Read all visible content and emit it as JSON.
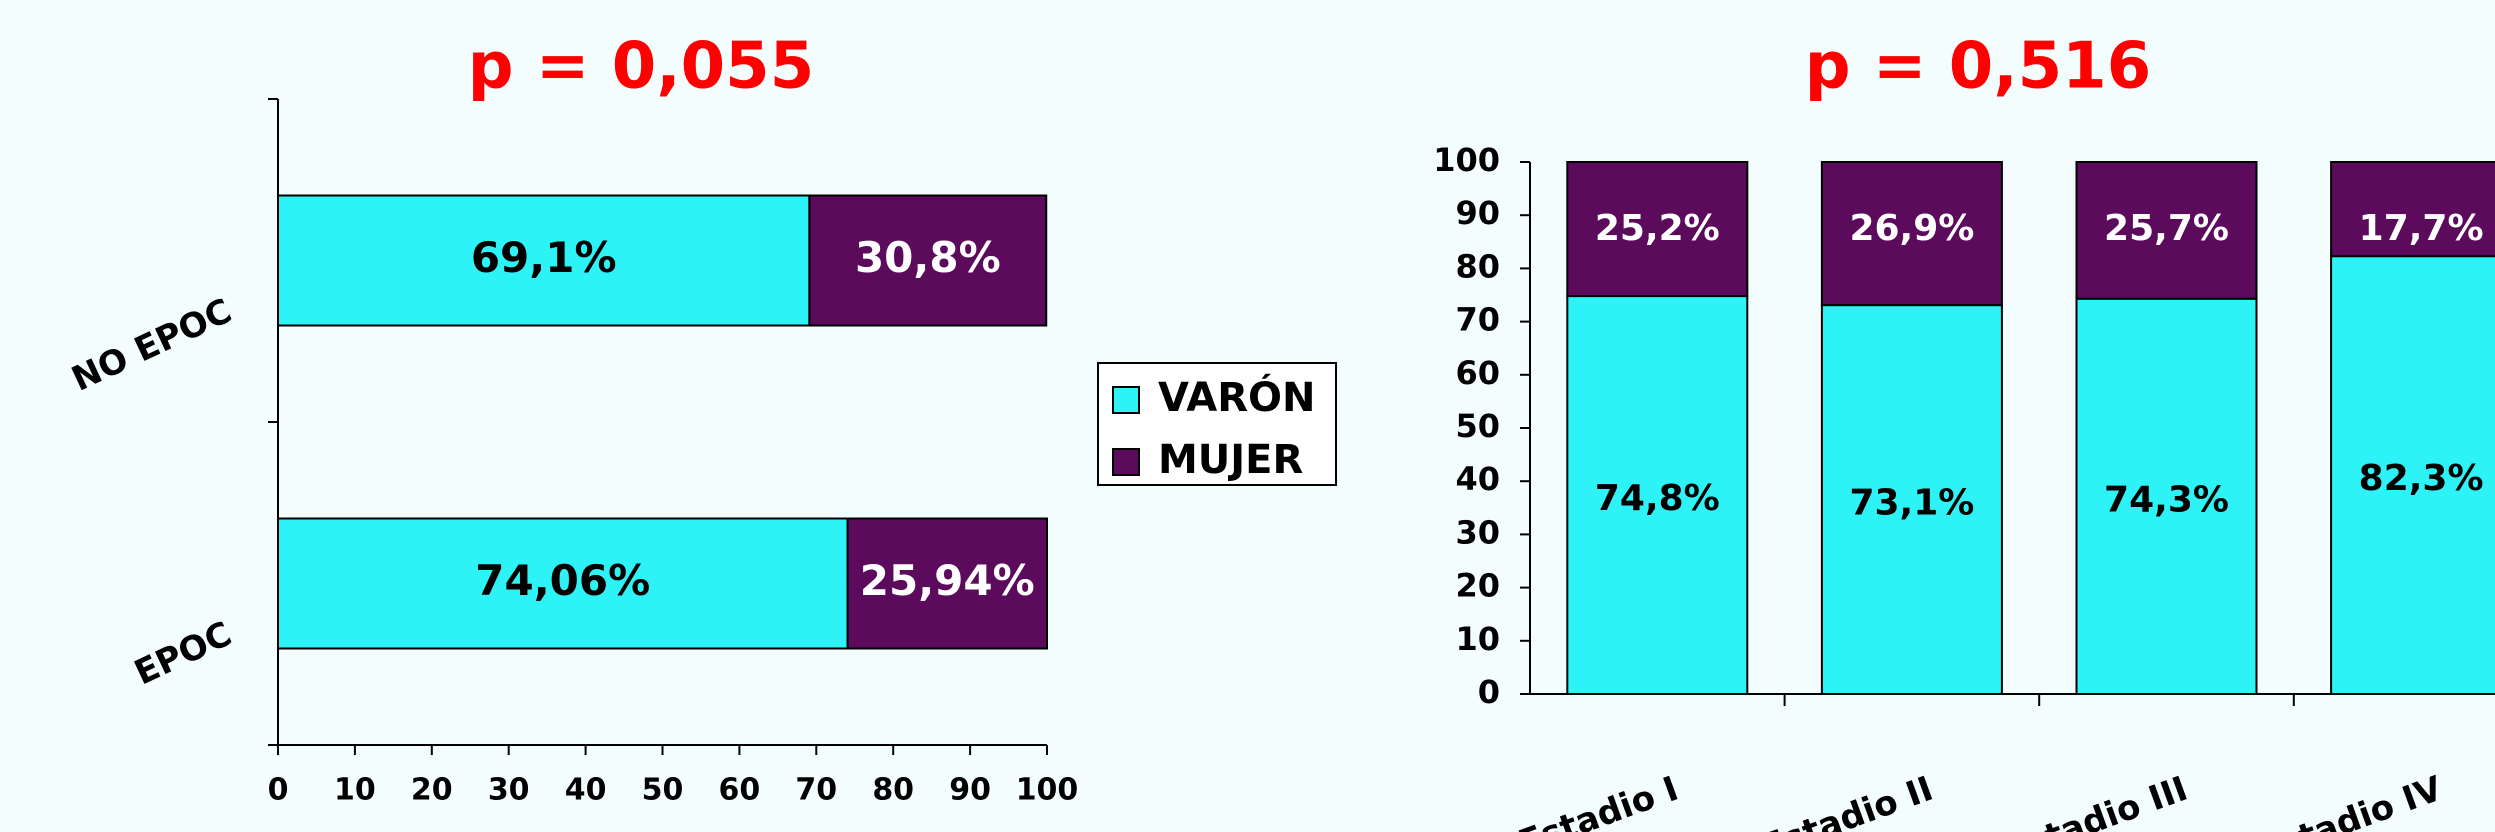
{
  "chart_data": [
    {
      "type": "hbar_stacked",
      "title": "p = 0,055",
      "categories": [
        "NO EPOC",
        "EPOC"
      ],
      "series": [
        {
          "name": "VARÓN",
          "color": "#2ef3f6",
          "values": [
            69.1,
            74.06
          ],
          "value_labels": [
            "69,1%",
            "74,06%"
          ]
        },
        {
          "name": "MUJER",
          "color": "#5c0a5c",
          "values": [
            30.8,
            25.94
          ],
          "value_labels": [
            "30,8%",
            "25,94%"
          ]
        }
      ],
      "xlim": [
        0,
        100
      ],
      "xticks": [
        0,
        10,
        20,
        30,
        40,
        50,
        60,
        70,
        80,
        90,
        100
      ]
    },
    {
      "type": "vbar_stacked",
      "title": "p = 0,516",
      "categories": [
        "Estadio I",
        "Estadio II",
        "Estadio III",
        "Estadio IV"
      ],
      "series": [
        {
          "color": "#2ef3f6",
          "values": [
            74.8,
            73.1,
            74.3,
            82.3
          ],
          "value_labels": [
            "74,8%",
            "73,1%",
            "74,3%",
            "82,3%"
          ]
        },
        {
          "color": "#5c0a5c",
          "values": [
            25.2,
            26.9,
            25.7,
            17.7
          ],
          "value_labels": [
            "25,2%",
            "26,9%",
            "25,7%",
            "17,7%"
          ]
        }
      ],
      "ylim": [
        0,
        100
      ],
      "yticks": [
        0,
        10,
        20,
        30,
        40,
        50,
        60,
        70,
        80,
        90,
        100
      ]
    }
  ]
}
